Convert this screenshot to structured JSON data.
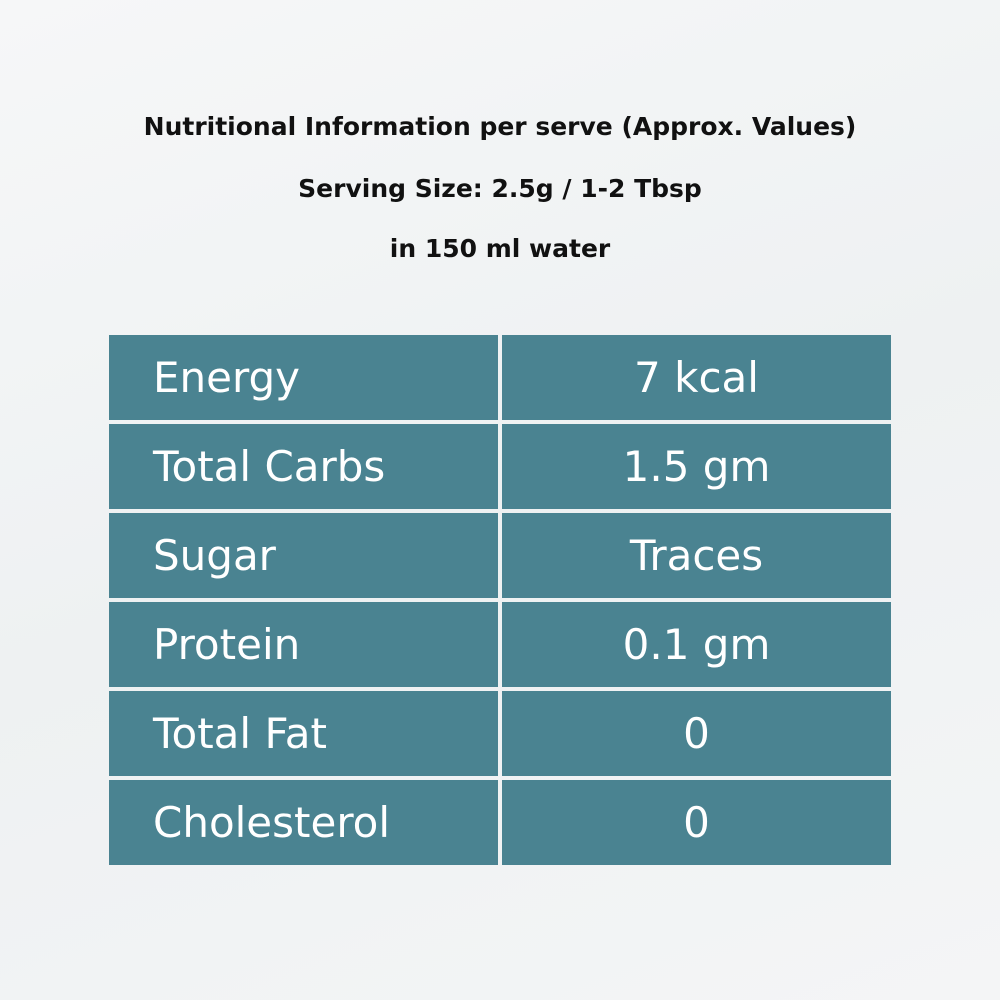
{
  "header": {
    "title": "Nutritional Information per serve (Approx. Values)",
    "serving_size": "Serving Size: 2.5g / 1-2 Tbsp",
    "serving_note": "in 150 ml water"
  },
  "table": {
    "rows": [
      [
        "Energy",
        "7 kcal"
      ],
      [
        "Total Carbs",
        "1.5 gm"
      ],
      [
        "Sugar",
        "Traces"
      ],
      [
        "Protein",
        "0.1 gm"
      ],
      [
        "Total Fat",
        "0"
      ],
      [
        "Cholesterol",
        "0"
      ]
    ]
  }
}
